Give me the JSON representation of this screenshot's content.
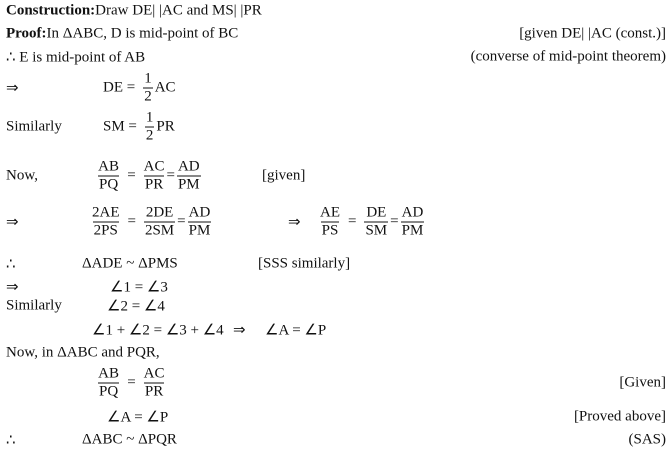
{
  "construction": {
    "label": "Construction:",
    "text": " Draw DE| |AC and MS| |PR"
  },
  "proof": {
    "label": "Proof:",
    "text": " In ΔABC, D is mid-point of BC",
    "reason": "[given DE| |AC (const.)]"
  },
  "e_mid": {
    "text": "∴ E is mid-point of AB",
    "reason": "(converse of mid-point theorem)"
  },
  "de_eq": {
    "lead": "⇒",
    "lhs": "DE =",
    "num": "1",
    "den": "2",
    "rhs": "AC"
  },
  "sm_eq": {
    "lead": "Similarly",
    "lhs": "SM =",
    "num": "1",
    "den": "2",
    "rhs": "PR"
  },
  "now_ratio": {
    "lead": "Now,",
    "f1": [
      "AB",
      "PQ"
    ],
    "f2": [
      "AC",
      "PR"
    ],
    "f3": [
      "AD",
      "PM"
    ],
    "eq": "=",
    "reason": "[given]"
  },
  "double_ratio": {
    "lead": "⇒",
    "f1": [
      "2AE",
      "2PS"
    ],
    "f2": [
      "2DE",
      "2SM"
    ],
    "f3": [
      "AD",
      "PM"
    ],
    "imp": "⇒",
    "g1": [
      "AE",
      "PS"
    ],
    "g2": [
      "DE",
      "SM"
    ],
    "g3": [
      "AD",
      "PM"
    ],
    "eq": "="
  },
  "sim1": {
    "lead": "∴",
    "text": "ΔADE ~ ΔPMS",
    "reason": "[SSS similarly]"
  },
  "ang13": {
    "lead": "⇒",
    "text": "∠1 = ∠3"
  },
  "ang24": {
    "lead": "Similarly",
    "text": "∠2 = ∠4"
  },
  "ang_sum": {
    "text": "∠1 + ∠2 = ∠3 + ∠4",
    "imp": "⇒",
    "result": "∠A = ∠P"
  },
  "now_in": {
    "text": "Now, in ΔABC and PQR,"
  },
  "ratio2": {
    "f1": [
      "AB",
      "PQ"
    ],
    "f2": [
      "AC",
      "PR"
    ],
    "eq": "=",
    "reason": "[Given]"
  },
  "angA": {
    "text": "∠A = ∠P",
    "reason": "[Proved above]"
  },
  "final": {
    "lead": "∴",
    "text": "ΔABC ~ ΔPQR",
    "reason": "(SAS)"
  }
}
